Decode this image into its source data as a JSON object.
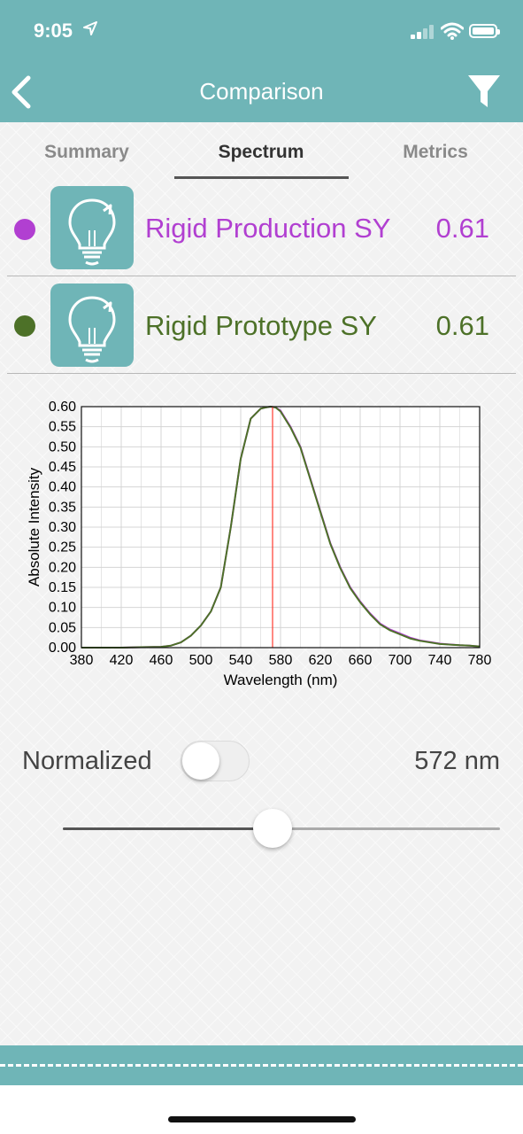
{
  "status_bar": {
    "time": "9:05"
  },
  "header": {
    "title": "Comparison"
  },
  "tabs": [
    {
      "label": "Summary",
      "active": false
    },
    {
      "label": "Spectrum",
      "active": true
    },
    {
      "label": "Metrics",
      "active": false
    }
  ],
  "items": [
    {
      "name": "Rigid Production SY",
      "value": "0.61",
      "color": "#b13fd1",
      "icon": "lightbulb-icon"
    },
    {
      "name": "Rigid Prototype SY",
      "value": "0.61",
      "color": "#4d7128",
      "icon": "lightbulb-icon"
    }
  ],
  "chart_data": {
    "type": "line",
    "xlabel": "Wavelength (nm)",
    "ylabel": "Absolute Intensity",
    "xlim": [
      380,
      780
    ],
    "ylim": [
      0,
      0.6
    ],
    "xticks": [
      380,
      420,
      460,
      500,
      540,
      580,
      620,
      660,
      700,
      740,
      780
    ],
    "yticks": [
      "0.00",
      "0.05",
      "0.10",
      "0.15",
      "0.20",
      "0.25",
      "0.30",
      "0.35",
      "0.40",
      "0.45",
      "0.50",
      "0.55",
      "0.60"
    ],
    "grid": true,
    "marker_x": 572,
    "marker_color": "#ff3b30",
    "series": [
      {
        "color": "#b13fd1",
        "x": [
          380,
          400,
          420,
          440,
          460,
          470,
          480,
          490,
          500,
          510,
          520,
          530,
          540,
          550,
          560,
          565,
          570,
          575,
          580,
          590,
          600,
          610,
          620,
          630,
          640,
          650,
          660,
          670,
          680,
          690,
          700,
          710,
          720,
          740,
          760,
          770,
          775,
          780
        ],
        "y": [
          0.0,
          0.0,
          0.0,
          0.001,
          0.002,
          0.005,
          0.013,
          0.03,
          0.055,
          0.09,
          0.15,
          0.3,
          0.47,
          0.57,
          0.595,
          0.598,
          0.6,
          0.598,
          0.59,
          0.55,
          0.5,
          0.42,
          0.34,
          0.26,
          0.2,
          0.15,
          0.115,
          0.085,
          0.06,
          0.045,
          0.035,
          0.025,
          0.018,
          0.01,
          0.006,
          0.005,
          0.004,
          0.003
        ]
      },
      {
        "color": "#4d7128",
        "x": [
          380,
          400,
          420,
          440,
          460,
          470,
          480,
          490,
          500,
          510,
          520,
          530,
          540,
          550,
          560,
          565,
          570,
          575,
          580,
          590,
          600,
          610,
          620,
          630,
          640,
          650,
          660,
          670,
          680,
          690,
          700,
          710,
          720,
          740,
          760,
          770,
          775,
          780
        ],
        "y": [
          0.0,
          0.0,
          0.0,
          0.001,
          0.002,
          0.005,
          0.013,
          0.03,
          0.055,
          0.09,
          0.15,
          0.3,
          0.47,
          0.57,
          0.595,
          0.598,
          0.6,
          0.598,
          0.588,
          0.548,
          0.498,
          0.418,
          0.338,
          0.258,
          0.198,
          0.148,
          0.113,
          0.083,
          0.058,
          0.043,
          0.033,
          0.023,
          0.017,
          0.009,
          0.006,
          0.005,
          0.004,
          0.003
        ]
      }
    ]
  },
  "controls": {
    "normalized_label": "Normalized",
    "normalized_on": false,
    "wavelength_display": "572 nm",
    "slider_min": 380,
    "slider_max": 780,
    "slider_value": 572
  }
}
